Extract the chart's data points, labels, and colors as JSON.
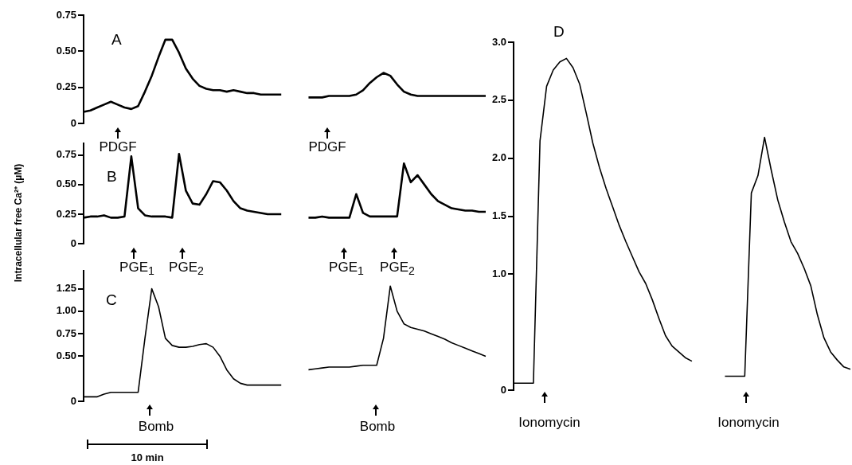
{
  "chart_data": [
    {
      "type": "line",
      "annotations": [
        "A",
        "PDGF",
        "PDGF"
      ],
      "marker": "none",
      "tick_labels": "y",
      "categories": [
        null,
        null,
        null,
        null,
        null,
        null,
        null,
        null,
        null,
        null,
        null,
        null,
        null,
        null,
        null,
        null,
        null,
        null,
        null,
        null,
        null,
        null,
        null,
        null,
        null,
        null,
        null,
        null,
        null,
        null,
        null,
        null,
        null,
        null,
        null,
        null,
        null,
        null,
        null,
        null,
        null,
        null,
        null,
        null,
        null,
        null,
        null,
        null,
        null,
        null,
        null,
        null,
        null,
        null,
        null,
        null,
        null,
        null,
        null,
        null
      ],
      "ylim": [
        0,
        0.75
      ],
      "yticks": [
        0,
        0.25,
        {
          "value": 0.5,
          "label": "0.50"
        },
        0.75
      ],
      "series": [
        {
          "color": "#000000",
          "values": [
            0.08,
            0.09,
            0.11,
            0.13,
            0.15,
            0.13,
            0.11,
            0.1,
            0.12,
            0.22,
            0.33,
            0.46,
            0.58,
            0.58,
            0.49,
            0.38,
            0.31,
            0.26,
            0.24,
            0.23,
            0.23,
            0.22,
            0.23,
            0.22,
            0.21,
            0.21,
            0.2,
            0.2,
            0.2,
            0.2,
            null,
            null,
            null,
            null,
            null,
            null,
            null,
            null,
            null,
            null,
            null,
            null,
            null,
            null,
            null,
            null,
            null,
            null,
            null,
            null,
            null,
            null,
            null,
            null,
            null,
            null,
            null,
            null,
            null,
            null
          ]
        },
        {
          "color": "#000000",
          "values": [
            null,
            null,
            null,
            null,
            null,
            null,
            null,
            null,
            null,
            null,
            null,
            null,
            null,
            null,
            null,
            null,
            null,
            null,
            null,
            null,
            null,
            null,
            null,
            null,
            null,
            null,
            null,
            null,
            null,
            null,
            null,
            null,
            null,
            0.18,
            0.18,
            0.18,
            0.19,
            0.19,
            0.19,
            0.19,
            0.2,
            0.23,
            0.28,
            0.32,
            0.35,
            0.33,
            0.27,
            0.22,
            0.2,
            0.19,
            0.19,
            0.19,
            0.19,
            0.19,
            0.19,
            0.19,
            0.19,
            0.19,
            0.19,
            0.19
          ]
        }
      ]
    },
    {
      "type": "line",
      "ylabel": "Intracellular free Ca²⁺ (µM)",
      "annotations": [
        "B",
        "PGE$_{1}$",
        "PGE$_{2}$",
        "PGE$_{1}$",
        "PGE$_{2}$"
      ],
      "marker": "none",
      "tick_labels": "y",
      "categories": [
        null,
        null,
        null,
        null,
        null,
        null,
        null,
        null,
        null,
        null,
        null,
        null,
        null,
        null,
        null,
        null,
        null,
        null,
        null,
        null,
        null,
        null,
        null,
        null,
        null,
        null,
        null,
        null,
        null,
        null,
        null,
        null,
        null,
        null,
        null,
        null,
        null,
        null,
        null,
        null,
        null,
        null,
        null,
        null,
        null,
        null,
        null,
        null,
        null,
        null,
        null,
        null,
        null,
        null,
        null,
        null,
        null,
        null,
        null,
        null
      ],
      "ylim": [
        0,
        0.85
      ],
      "yticks": [
        0,
        0.25,
        {
          "value": 0.5,
          "label": "0.50"
        },
        0.75
      ],
      "series": [
        {
          "color": "#000000",
          "values": [
            0.22,
            0.23,
            0.23,
            0.24,
            0.22,
            0.22,
            0.23,
            0.74,
            0.3,
            0.24,
            0.23,
            0.23,
            0.23,
            0.22,
            0.76,
            0.45,
            0.34,
            0.33,
            0.42,
            0.53,
            0.52,
            0.45,
            0.36,
            0.3,
            0.28,
            0.27,
            0.26,
            0.25,
            0.25,
            0.25,
            null,
            null,
            null,
            null,
            null,
            null,
            null,
            null,
            null,
            null,
            null,
            null,
            null,
            null,
            null,
            null,
            null,
            null,
            null,
            null,
            null,
            null,
            null,
            null,
            null,
            null,
            null,
            null,
            null,
            null
          ]
        },
        {
          "color": "#000000",
          "values": [
            null,
            null,
            null,
            null,
            null,
            null,
            null,
            null,
            null,
            null,
            null,
            null,
            null,
            null,
            null,
            null,
            null,
            null,
            null,
            null,
            null,
            null,
            null,
            null,
            null,
            null,
            null,
            null,
            null,
            null,
            null,
            null,
            null,
            0.22,
            0.22,
            0.23,
            0.22,
            0.22,
            0.22,
            0.22,
            0.42,
            0.26,
            0.23,
            0.23,
            0.23,
            0.23,
            0.23,
            0.68,
            0.52,
            0.58,
            0.5,
            0.42,
            0.36,
            0.33,
            0.3,
            0.29,
            0.28,
            0.28,
            0.27,
            0.27
          ]
        }
      ]
    },
    {
      "type": "line",
      "annotations": [
        "C",
        "Bomb",
        "Bomb",
        "10 min"
      ],
      "marker": "none",
      "tick_labels": "y",
      "categories": [
        null,
        null,
        null,
        null,
        null,
        null,
        null,
        null,
        null,
        null,
        null,
        null,
        null,
        null,
        null,
        null,
        null,
        null,
        null,
        null,
        null,
        null,
        null,
        null,
        null,
        null,
        null,
        null,
        null,
        null,
        null,
        null,
        null,
        null,
        null,
        null,
        null,
        null,
        null,
        null,
        null,
        null,
        null,
        null,
        null,
        null,
        null,
        null,
        null,
        null,
        null,
        null,
        null,
        null,
        null,
        null,
        null,
        null,
        null,
        null
      ],
      "ylim": [
        0,
        1.45
      ],
      "yticks": [
        0,
        {
          "value": 0.5,
          "label": "0.50"
        },
        0.75,
        {
          "value": 1,
          "label": "1.00"
        },
        1.25
      ],
      "series": [
        {
          "color": "#000000",
          "values": [
            0.05,
            0.05,
            0.05,
            0.08,
            0.1,
            0.1,
            0.1,
            0.1,
            0.1,
            0.7,
            1.25,
            1.05,
            0.7,
            0.62,
            0.6,
            0.6,
            0.61,
            0.63,
            0.64,
            0.6,
            0.5,
            0.35,
            0.25,
            0.2,
            0.18,
            0.18,
            0.18,
            0.18,
            0.18,
            0.18,
            null,
            null,
            null,
            null,
            null,
            null,
            null,
            null,
            null,
            null,
            null,
            null,
            null,
            null,
            null,
            null,
            null,
            null,
            null,
            null,
            null,
            null,
            null,
            null,
            null,
            null,
            null,
            null,
            null,
            null
          ]
        },
        {
          "color": "#000000",
          "values": [
            null,
            null,
            null,
            null,
            null,
            null,
            null,
            null,
            null,
            null,
            null,
            null,
            null,
            null,
            null,
            null,
            null,
            null,
            null,
            null,
            null,
            null,
            null,
            null,
            null,
            null,
            null,
            null,
            null,
            null,
            null,
            null,
            null,
            0.35,
            0.36,
            0.37,
            0.38,
            0.38,
            0.38,
            0.38,
            0.39,
            0.4,
            0.4,
            0.4,
            0.7,
            1.28,
            1.0,
            0.86,
            0.82,
            0.8,
            0.78,
            0.75,
            0.72,
            0.69,
            0.65,
            0.62,
            0.59,
            0.56,
            0.53,
            0.5
          ]
        }
      ]
    },
    {
      "type": "line",
      "annotations": [
        "D",
        "Ionomycin",
        "Ionomycin"
      ],
      "marker": "none",
      "tick_labels": "y",
      "categories": [
        null,
        null,
        null,
        null,
        null,
        null,
        null,
        null,
        null,
        null,
        null,
        null,
        null,
        null,
        null,
        null,
        null,
        null,
        null,
        null,
        null,
        null,
        null,
        null,
        null,
        null,
        null,
        null,
        null,
        null,
        null,
        null,
        null,
        null,
        null,
        null,
        null,
        null,
        null,
        null,
        null,
        null,
        null,
        null,
        null,
        null,
        null,
        null,
        null,
        null,
        null,
        null
      ],
      "ylim": [
        0,
        3
      ],
      "yticks": [
        0,
        {
          "value": 1,
          "label": "1.0"
        },
        1.5,
        {
          "value": 2,
          "label": "2.0"
        },
        2.5,
        {
          "value": 3,
          "label": "3.0"
        }
      ],
      "series": [
        {
          "color": "#000000",
          "values": [
            0.06,
            0.06,
            0.06,
            0.06,
            2.15,
            2.62,
            2.76,
            2.83,
            2.86,
            2.78,
            2.64,
            2.39,
            2.13,
            1.92,
            1.74,
            1.58,
            1.42,
            1.28,
            1.15,
            1.02,
            0.92,
            0.78,
            0.62,
            0.47,
            0.38,
            0.33,
            0.28,
            0.25,
            null,
            null,
            null,
            null,
            null,
            null,
            null,
            null,
            null,
            null,
            null,
            null,
            null,
            null,
            null,
            null,
            null,
            null,
            null,
            null,
            null,
            null,
            null,
            null
          ]
        },
        {
          "color": "#000000",
          "values": [
            null,
            null,
            null,
            null,
            null,
            null,
            null,
            null,
            null,
            null,
            null,
            null,
            null,
            null,
            null,
            null,
            null,
            null,
            null,
            null,
            null,
            null,
            null,
            null,
            null,
            null,
            null,
            null,
            null,
            null,
            null,
            null,
            0.12,
            0.12,
            0.12,
            0.12,
            1.7,
            1.85,
            2.18,
            1.9,
            1.64,
            1.45,
            1.28,
            1.18,
            1.05,
            0.9,
            0.65,
            0.45,
            0.33,
            0.26,
            0.2,
            0.18
          ]
        }
      ]
    }
  ]
}
